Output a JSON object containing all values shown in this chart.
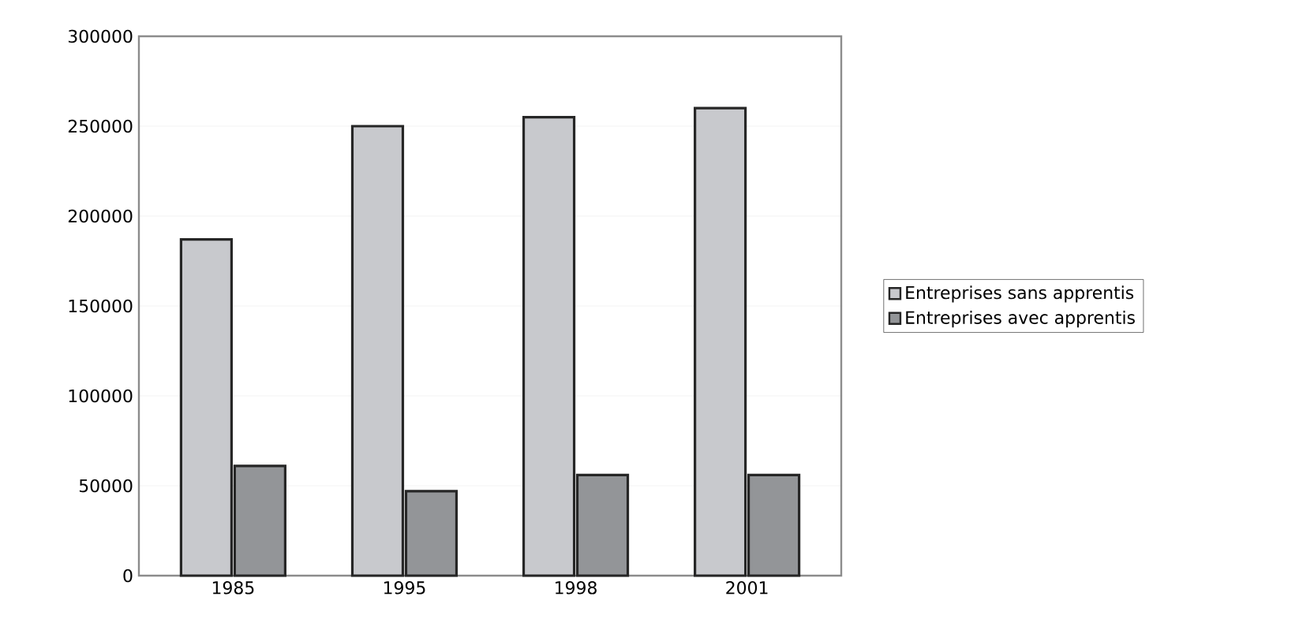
{
  "chart_data": {
    "type": "bar",
    "categories": [
      "1985",
      "1995",
      "1998",
      "2001"
    ],
    "series": [
      {
        "name": "Entreprises sans apprentis",
        "color": "#c8c9cd",
        "values": [
          187000,
          250000,
          255000,
          260000
        ]
      },
      {
        "name": "Entreprises avec apprentis",
        "color": "#939598",
        "values": [
          61000,
          47000,
          56000,
          56000
        ]
      }
    ],
    "ylim": [
      0,
      300000
    ],
    "yticks": [
      0,
      50000,
      100000,
      150000,
      200000,
      250000,
      300000
    ],
    "grid": "y",
    "legend": "right"
  }
}
